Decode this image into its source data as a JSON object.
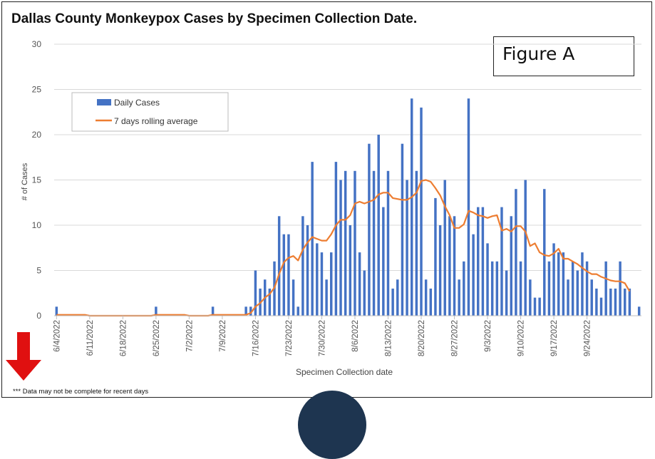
{
  "title": "Dallas County Monkeypox Cases by Specimen Collection Date.",
  "figure_label": "Figure A",
  "note": "*** Data may not be complete for recent days",
  "colors": {
    "bar": "#4472c4",
    "line": "#ed7d31",
    "arrow": "#e01010",
    "grid": "#d9d9d9"
  },
  "chart_data": {
    "type": "bar",
    "title": "",
    "xlabel": "Specimen Collection date",
    "ylabel": "# of Cases",
    "ylim": [
      0,
      30
    ],
    "yticks": [
      0,
      5,
      10,
      15,
      20,
      25,
      30
    ],
    "grid": "horizontal",
    "legend_position": "top-left",
    "start_date": "6/4/2022",
    "x_tick_labels": [
      "6/4/2022",
      "6/11/2022",
      "6/18/2022",
      "6/25/2022",
      "7/2/2022",
      "7/9/2022",
      "7/16/2022",
      "7/23/2022",
      "7/30/2022",
      "8/6/2022",
      "8/13/2022",
      "8/20/2022",
      "8/27/2022",
      "9/3/2022",
      "9/10/2022",
      "9/17/2022",
      "9/24/2022"
    ],
    "series": [
      {
        "name": "Daily Cases",
        "type": "bar",
        "values": [
          1,
          0,
          0,
          0,
          0,
          0,
          0,
          0,
          0,
          0,
          0,
          0,
          0,
          0,
          0,
          0,
          0,
          0,
          0,
          0,
          0,
          1,
          0,
          0,
          0,
          0,
          0,
          0,
          0,
          0,
          0,
          0,
          0,
          1,
          0,
          0,
          0,
          0,
          0,
          0,
          1,
          1,
          5,
          3,
          4,
          3,
          6,
          11,
          9,
          9,
          4,
          1,
          11,
          10,
          17,
          8,
          7,
          4,
          7,
          17,
          15,
          16,
          10,
          16,
          7,
          5,
          19,
          16,
          20,
          12,
          16,
          3,
          4,
          19,
          15,
          24,
          16,
          23,
          4,
          3,
          13,
          10,
          15,
          11,
          11,
          4,
          6,
          24,
          9,
          12,
          12,
          8,
          6,
          6,
          12,
          5,
          11,
          14,
          6,
          15,
          4,
          2,
          2,
          14,
          6,
          8,
          7,
          7,
          4,
          6,
          5,
          7,
          6,
          4,
          3,
          2,
          6,
          3,
          3,
          6,
          3,
          3,
          0,
          1
        ]
      },
      {
        "name": "7 days rolling average",
        "type": "line",
        "values": [
          0.1,
          0.1,
          0.1,
          0.1,
          0.1,
          0.1,
          0.1,
          0,
          0,
          0,
          0,
          0,
          0,
          0,
          0,
          0,
          0,
          0,
          0,
          0,
          0,
          0.1,
          0.1,
          0.1,
          0.1,
          0.1,
          0.1,
          0.1,
          0,
          0,
          0,
          0,
          0,
          0.1,
          0.1,
          0.1,
          0.1,
          0.1,
          0.1,
          0.1,
          0.1,
          0.3,
          1.0,
          1.4,
          2.0,
          2.4,
          3.1,
          4.6,
          5.9,
          6.4,
          6.6,
          6.1,
          7.3,
          8.1,
          8.7,
          8.5,
          8.3,
          8.3,
          9.0,
          10.0,
          10.6,
          10.6,
          11.1,
          12.4,
          12.6,
          12.4,
          12.6,
          12.8,
          13.4,
          13.6,
          13.6,
          13.0,
          12.9,
          12.8,
          12.8,
          13.1,
          13.6,
          14.9,
          15.0,
          14.8,
          14.1,
          13.3,
          12.1,
          11.1,
          9.7,
          9.7,
          10.1,
          11.6,
          11.4,
          11.1,
          11.0,
          10.8,
          11.0,
          11.1,
          9.4,
          9.6,
          9.3,
          9.9,
          9.9,
          9.3,
          7.7,
          8.0,
          7.0,
          6.7,
          6.6,
          6.9,
          7.4,
          6.3,
          6.3,
          6.0,
          5.7,
          5.3,
          4.9,
          4.6,
          4.6,
          4.3,
          4.1,
          3.9,
          3.8,
          3.8,
          3.6,
          2.7
        ]
      }
    ]
  }
}
